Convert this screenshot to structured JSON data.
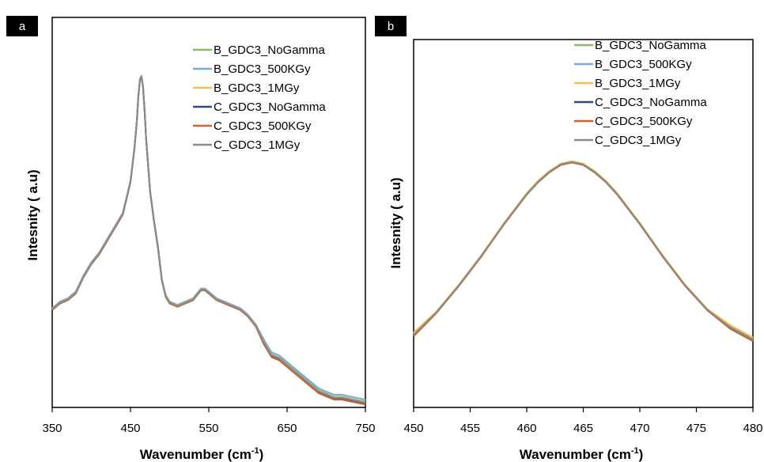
{
  "panels": [
    {
      "label": "a",
      "ylabel": "Intesnity ( a.u)",
      "xlabel_main": "Wavenumber (cm",
      "xlabel_sup": "-1",
      "xlabel_close": ")",
      "legend": [
        "B_GDC3_NoGamma",
        "B_GDC3_500KGy",
        "B_GDC3_1MGy",
        "C_GDC3_NoGamma",
        "C_GDC3_500KGy",
        "C_GDC3_1MGy"
      ]
    },
    {
      "label": "b",
      "ylabel": "Intesnity ( a.u)",
      "xlabel_main": "Wavenumber (cm",
      "xlabel_sup": "-1",
      "xlabel_close": ")",
      "legend": [
        "B_GDC3_NoGamma",
        "B_GDC3_500KGy",
        "B_GDC3_1MGy",
        "C_GDC3_NoGamma",
        "C_GDC3_500KGy",
        "C_GDC3_1MGy"
      ]
    }
  ],
  "colors": {
    "series": [
      "#8db86a",
      "#7aa9d6",
      "#f2c04e",
      "#2e4a86",
      "#c8642e",
      "#8a8a8a"
    ],
    "panel_label_bg": "#000000",
    "panel_label_fg": "#ffffff",
    "axis": "#000000"
  },
  "chart_data": [
    {
      "type": "line",
      "xlabel": "Wavenumber (cm-1)",
      "ylabel": "Intesnity ( a.u)",
      "xlim": [
        350,
        750
      ],
      "xticks": [
        350,
        450,
        550,
        650,
        750
      ],
      "ylim": [
        0,
        100
      ],
      "yticks_shown": false,
      "grid": false,
      "legend_position": "top-right",
      "series": [
        {
          "name": "B_GDC3_NoGamma",
          "offset": 0.3
        },
        {
          "name": "B_GDC3_500KGy",
          "offset": 0.9
        },
        {
          "name": "B_GDC3_1MGy",
          "offset": 0.1
        },
        {
          "name": "C_GDC3_NoGamma",
          "offset": -0.3
        },
        {
          "name": "C_GDC3_500KGy",
          "offset": -0.6
        },
        {
          "name": "C_GDC3_1MGy",
          "offset": 0.0
        }
      ],
      "x": [
        350,
        360,
        370,
        380,
        390,
        400,
        410,
        420,
        430,
        440,
        445,
        450,
        455,
        458,
        460,
        462,
        464,
        466,
        468,
        470,
        475,
        480,
        485,
        490,
        495,
        500,
        510,
        520,
        530,
        540,
        545,
        550,
        560,
        570,
        580,
        590,
        600,
        610,
        620,
        630,
        640,
        650,
        660,
        670,
        680,
        690,
        700,
        710,
        720,
        730,
        740,
        750
      ],
      "y": [
        29,
        31,
        32,
        34,
        39,
        43,
        46,
        50,
        54,
        58,
        63,
        68,
        78,
        86,
        94,
        99,
        100,
        97,
        90,
        81,
        65,
        56,
        48,
        38,
        33,
        31,
        30,
        31,
        32,
        35,
        35,
        34,
        32,
        31,
        30,
        29,
        27,
        24,
        19,
        15,
        14,
        12,
        10,
        8,
        6,
        4,
        3,
        2,
        2,
        1.5,
        1,
        0.5
      ]
    },
    {
      "type": "line",
      "xlabel": "Wavenumber (cm-1)",
      "ylabel": "Intesnity ( a.u)",
      "xlim": [
        450,
        480
      ],
      "xticks": [
        450,
        455,
        460,
        465,
        470,
        475,
        480
      ],
      "ylim": [
        0,
        100
      ],
      "yticks_shown": false,
      "grid": false,
      "legend_position": "top-right",
      "peak_center": 464.2,
      "series": [
        {
          "name": "B_GDC3_NoGamma",
          "offset": 0.6
        },
        {
          "name": "B_GDC3_500KGy",
          "offset": 0.3
        },
        {
          "name": "B_GDC3_1MGy",
          "offset": 0.9
        },
        {
          "name": "C_GDC3_NoGamma",
          "offset": -0.3
        },
        {
          "name": "C_GDC3_500KGy",
          "offset": -0.6
        },
        {
          "name": "C_GDC3_1MGy",
          "offset": 0.0
        }
      ],
      "x": [
        450,
        452,
        454,
        456,
        458,
        460,
        461,
        462,
        463,
        464,
        465,
        466,
        467,
        468,
        470,
        472,
        474,
        476,
        478,
        480
      ],
      "y": [
        15,
        24,
        35,
        47,
        60,
        72,
        77,
        81,
        84,
        85,
        84,
        81,
        77,
        72,
        60,
        47,
        35,
        25,
        18,
        13
      ]
    }
  ]
}
